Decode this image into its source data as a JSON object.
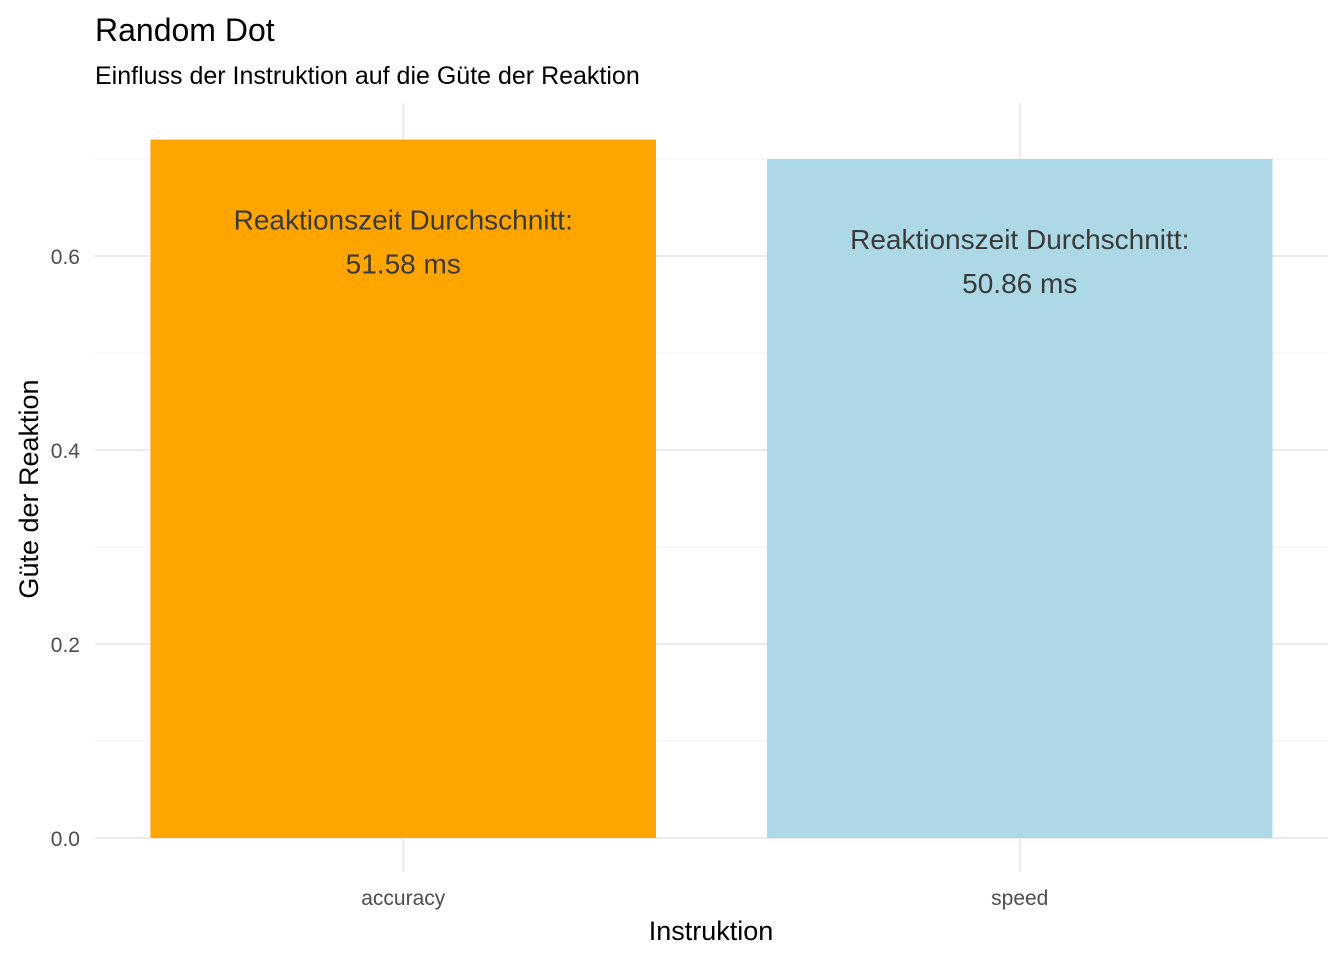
{
  "chart_data": {
    "type": "bar",
    "title": "Random Dot",
    "subtitle": "Einfluss der Instruktion auf die Güte der Reaktion",
    "xlabel": "Instruktion",
    "ylabel": "Güte der Reaktion",
    "categories": [
      "accuracy",
      "speed"
    ],
    "values": [
      0.72,
      0.7
    ],
    "colors": [
      "#FFA500",
      "#ADD8E6"
    ],
    "bar_labels": [
      [
        "Reaktionszeit Durchschnitt:",
        "51.58 ms"
      ],
      [
        "Reaktionszeit Durchschnitt:",
        "50.86 ms"
      ]
    ],
    "ylim": [
      0,
      0.7
    ],
    "yticks": [
      0.0,
      0.2,
      0.4,
      0.6
    ],
    "ytick_labels": [
      "0.0",
      "0.2",
      "0.4",
      "0.6"
    ],
    "grid": true,
    "legend": "none"
  }
}
